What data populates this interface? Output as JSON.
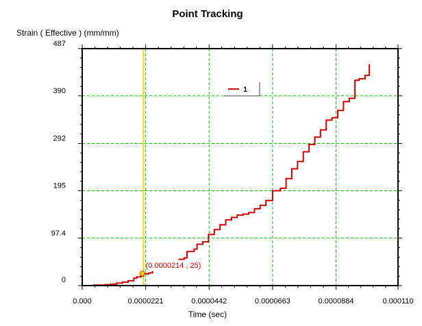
{
  "chart_data": {
    "type": "line",
    "title": "Point Tracking",
    "ylabel": "Strain ( Effective )  (mm/mm)",
    "xlabel": "Time (sec)",
    "xlim": [
      0,
      0.00011
    ],
    "ylim": [
      0,
      487
    ],
    "x_ticks": [
      {
        "value": 0,
        "label": "0.000"
      },
      {
        "value": 2.21e-05,
        "label": "0.0000221"
      },
      {
        "value": 4.42e-05,
        "label": "0.0000442"
      },
      {
        "value": 6.63e-05,
        "label": "0.0000663"
      },
      {
        "value": 8.84e-05,
        "label": "0.0000884"
      },
      {
        "value": 0.00011,
        "label": "0.000110"
      }
    ],
    "y_ticks": [
      {
        "value": 0,
        "label": "0"
      },
      {
        "value": 97.4,
        "label": "97.4"
      },
      {
        "value": 195,
        "label": "195"
      },
      {
        "value": 292,
        "label": "292"
      },
      {
        "value": 390,
        "label": "390"
      },
      {
        "value": 487,
        "label": "487"
      }
    ],
    "grid": true,
    "legend": {
      "position": "top-center"
    },
    "series": [
      {
        "name": "1",
        "color": "#cc0000",
        "segments": [
          [
            [
              0.0,
              0
            ],
            [
              4e-06,
              1
            ],
            [
              8e-06,
              2
            ],
            [
              1e-05,
              3
            ],
            [
              1.2e-05,
              5
            ],
            [
              1.4e-05,
              7
            ],
            [
              1.6e-05,
              10
            ],
            [
              1.8e-05,
              15
            ],
            [
              1.9e-05,
              18
            ],
            [
              2.05e-05,
              20
            ],
            [
              2.14e-05,
              25
            ],
            [
              2.21e-05,
              24
            ],
            [
              2.32e-05,
              26
            ],
            [
              2.45e-05,
              30
            ]
          ],
          [
            [
              3.35e-05,
              54
            ],
            [
              3.55e-05,
              57
            ],
            [
              3.65e-05,
              70
            ],
            [
              3.9e-05,
              75
            ],
            [
              4e-05,
              85
            ],
            [
              4.2e-05,
              90
            ],
            [
              4.4e-05,
              105
            ],
            [
              4.6e-05,
              115
            ],
            [
              4.8e-05,
              125
            ],
            [
              5e-05,
              135
            ],
            [
              5.2e-05,
              140
            ],
            [
              5.4e-05,
              145
            ],
            [
              5.6e-05,
              147
            ],
            [
              5.8e-05,
              150
            ],
            [
              6e-05,
              158
            ],
            [
              6.2e-05,
              165
            ],
            [
              6.4e-05,
              175
            ],
            [
              6.63e-05,
              195
            ],
            [
              6.9e-05,
              200
            ],
            [
              7.1e-05,
              220
            ],
            [
              7.3e-05,
              240
            ],
            [
              7.5e-05,
              255
            ],
            [
              7.7e-05,
              275
            ],
            [
              7.9e-05,
              290
            ],
            [
              8.1e-05,
              305
            ],
            [
              8.3e-05,
              320
            ],
            [
              8.5e-05,
              340
            ],
            [
              8.7e-05,
              345
            ],
            [
              8.9e-05,
              360
            ],
            [
              9.1e-05,
              378
            ],
            [
              9.3e-05,
              385
            ],
            [
              9.5e-05,
              422
            ],
            [
              9.65e-05,
              425
            ],
            [
              9.85e-05,
              432
            ],
            [
              0.0001,
              455
            ]
          ]
        ]
      }
    ],
    "cursor": {
      "x": 2.14e-05,
      "y": 25,
      "label": "(0.0000214 , 25)"
    }
  }
}
